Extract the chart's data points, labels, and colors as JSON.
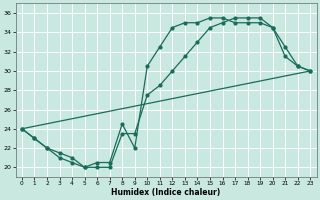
{
  "xlabel": "Humidex (Indice chaleur)",
  "xlim": [
    -0.5,
    23.5
  ],
  "ylim": [
    19,
    37
  ],
  "yticks": [
    20,
    22,
    24,
    26,
    28,
    30,
    32,
    34,
    36
  ],
  "xticks": [
    0,
    1,
    2,
    3,
    4,
    5,
    6,
    7,
    8,
    9,
    10,
    11,
    12,
    13,
    14,
    15,
    16,
    17,
    18,
    19,
    20,
    21,
    22,
    23
  ],
  "bg_color": "#c8e8e0",
  "grid_color": "#ffffff",
  "line_color": "#1a6b5a",
  "line1_x": [
    0,
    1,
    2,
    3,
    4,
    5,
    6,
    7,
    8,
    9,
    10,
    11,
    12,
    13,
    14,
    15,
    16,
    17,
    18,
    19,
    20,
    21,
    22,
    23
  ],
  "line1_y": [
    24.0,
    23.0,
    22.0,
    21.0,
    20.5,
    20.0,
    20.5,
    20.5,
    24.5,
    22.0,
    30.5,
    32.5,
    34.5,
    35.0,
    35.0,
    35.5,
    35.5,
    35.0,
    35.0,
    35.0,
    34.5,
    31.5,
    30.5,
    30.0
  ],
  "line2_x": [
    0,
    1,
    2,
    3,
    4,
    5,
    6,
    7,
    8,
    9,
    10,
    11,
    12,
    13,
    14,
    15,
    16,
    17,
    18,
    19,
    20,
    21,
    22,
    23
  ],
  "line2_y": [
    24.0,
    23.0,
    22.0,
    21.5,
    21.0,
    20.0,
    20.0,
    20.0,
    23.5,
    23.5,
    27.5,
    28.5,
    30.0,
    31.5,
    33.0,
    34.5,
    35.0,
    35.5,
    35.5,
    35.5,
    34.5,
    32.5,
    30.5,
    30.0
  ],
  "line3_x": [
    0,
    23
  ],
  "line3_y": [
    24.0,
    30.0
  ]
}
